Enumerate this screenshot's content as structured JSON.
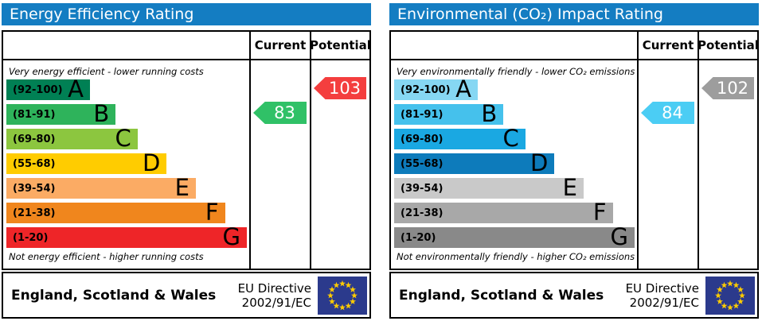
{
  "chart_data": [
    {
      "type": "bar",
      "title": "Energy Efficiency Rating",
      "annotation_top": "Very energy efficient - lower running costs",
      "annotation_bottom": "Not energy efficient - higher running costs",
      "bands": [
        {
          "letter": "A",
          "range": "92-100"
        },
        {
          "letter": "B",
          "range": "81-91"
        },
        {
          "letter": "C",
          "range": "69-80"
        },
        {
          "letter": "D",
          "range": "55-68"
        },
        {
          "letter": "E",
          "range": "39-54"
        },
        {
          "letter": "F",
          "range": "21-38"
        },
        {
          "letter": "G",
          "range": "1-20"
        }
      ],
      "current": 83,
      "current_band": "B",
      "potential": 103,
      "potential_band": "A",
      "region": "England, Scotland & Wales",
      "directive": "EU Directive 2002/91/EC"
    },
    {
      "type": "bar",
      "title": "Environmental (CO₂) Impact Rating",
      "annotation_top": "Very environmentally friendly - lower CO₂ emissions",
      "annotation_bottom": "Not environmentally friendly - higher CO₂ emissions",
      "bands": [
        {
          "letter": "A",
          "range": "92-100"
        },
        {
          "letter": "B",
          "range": "81-91"
        },
        {
          "letter": "C",
          "range": "69-80"
        },
        {
          "letter": "D",
          "range": "55-68"
        },
        {
          "letter": "E",
          "range": "39-54"
        },
        {
          "letter": "F",
          "range": "21-38"
        },
        {
          "letter": "G",
          "range": "1-20"
        }
      ],
      "current": 84,
      "current_band": "B",
      "potential": 102,
      "potential_band": "A",
      "region": "England, Scotland & Wales",
      "directive": "EU Directive 2002/91/EC"
    }
  ],
  "panels": [
    {
      "title": "Energy Efficiency Rating",
      "title_color": "#147dc2",
      "header": {
        "current": "Current",
        "potential": "Potential"
      },
      "top_note": "Very energy efficient - lower running costs",
      "bottom_note": "Not energy efficient - higher running costs",
      "bands": [
        {
          "range": "(92-100)",
          "letter": "A",
          "color": "#008054",
          "width_pct": 34
        },
        {
          "range": "(81-91)",
          "letter": "B",
          "color": "#2eb35b",
          "width_pct": 45
        },
        {
          "range": "(69-80)",
          "letter": "C",
          "color": "#8cc63f",
          "width_pct": 54
        },
        {
          "range": "(55-68)",
          "letter": "D",
          "color": "#ffcc00",
          "width_pct": 66
        },
        {
          "range": "(39-54)",
          "letter": "E",
          "color": "#fbab64",
          "width_pct": 78
        },
        {
          "range": "(21-38)",
          "letter": "F",
          "color": "#f0861d",
          "width_pct": 90
        },
        {
          "range": "(1-20)",
          "letter": "G",
          "color": "#ee2528",
          "width_pct": 99
        }
      ],
      "current": {
        "value": "83",
        "band_index": 1,
        "color": "#30c167"
      },
      "potential": {
        "value": "103",
        "band_index": 0,
        "color": "#f43e3e"
      },
      "footer": {
        "region": "England, Scotland & Wales",
        "directive_line1": "EU Directive",
        "directive_line2": "2002/91/EC"
      }
    },
    {
      "title": "Environmental (CO₂) Impact Rating",
      "title_color": "#147dc2",
      "header": {
        "current": "Current",
        "potential": "Potential"
      },
      "top_note": "Very environmentally friendly - lower CO₂ emissions",
      "bottom_note": "Not environmentally friendly - higher CO₂ emissions",
      "bands": [
        {
          "range": "(92-100)",
          "letter": "A",
          "color": "#86d7f3",
          "width_pct": 34
        },
        {
          "range": "(81-91)",
          "letter": "B",
          "color": "#45c1ec",
          "width_pct": 45
        },
        {
          "range": "(69-80)",
          "letter": "C",
          "color": "#1aa8e2",
          "width_pct": 54
        },
        {
          "range": "(55-68)",
          "letter": "D",
          "color": "#0d7bbb",
          "width_pct": 66
        },
        {
          "range": "(39-54)",
          "letter": "E",
          "color": "#c9c9c9",
          "width_pct": 78
        },
        {
          "range": "(21-38)",
          "letter": "F",
          "color": "#a8a8a8",
          "width_pct": 90
        },
        {
          "range": "(1-20)",
          "letter": "G",
          "color": "#898989",
          "width_pct": 99
        }
      ],
      "current": {
        "value": "84",
        "band_index": 1,
        "color": "#4bcdf4"
      },
      "potential": {
        "value": "102",
        "band_index": 0,
        "color": "#9d9d9d"
      },
      "footer": {
        "region": "England, Scotland & Wales",
        "directive_line1": "EU Directive",
        "directive_line2": "2002/91/EC"
      }
    }
  ],
  "flag": {
    "background": "#2b3a8c",
    "star_color": "#ffcc00"
  }
}
